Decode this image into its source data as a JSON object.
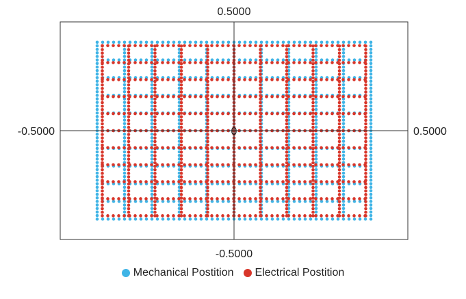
{
  "chart_data": {
    "type": "scatter",
    "title": "",
    "xlabel": "",
    "ylabel": "",
    "xlim": [
      -0.5,
      0.5
    ],
    "ylim": [
      -0.5,
      0.5
    ],
    "x_tick_labels": {
      "min": "-0.5000",
      "max": "0.5000"
    },
    "y_tick_labels": {
      "min": "-0.5000",
      "max": "0.5000"
    },
    "origin_label": "0",
    "grid": false,
    "legend_position": "bottom",
    "series": [
      {
        "name": "Mechanical Postition",
        "color": "#3fb4e6",
        "x_range": [
          -0.4,
          0.4
        ],
        "y_range": [
          -0.4,
          0.4
        ],
        "grid_lines": [
          -0.4,
          -0.32,
          -0.24,
          -0.16,
          -0.08,
          0,
          0.08,
          0.16,
          0.24,
          0.32,
          0.4
        ],
        "point_spacing": 0.016
      },
      {
        "name": "Electrical Postition",
        "color": "#d8362a",
        "x_range": [
          -0.385,
          0.385
        ],
        "y_range": [
          -0.385,
          0.385
        ],
        "grid_lines": [
          -0.385,
          -0.308,
          -0.231,
          -0.154,
          -0.077,
          0,
          0.077,
          0.154,
          0.231,
          0.308,
          0.385
        ],
        "point_spacing": 0.016
      }
    ]
  }
}
